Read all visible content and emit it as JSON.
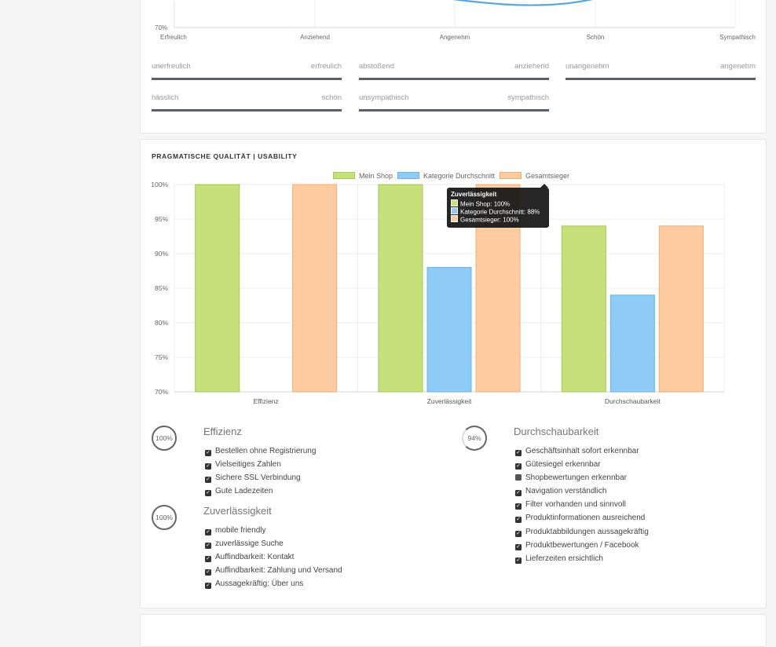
{
  "top_card": {
    "line_chart": {
      "y_tick": "70%",
      "x_labels": [
        "Erfreulich",
        "Anziehend",
        "Angenehm",
        "Schön",
        "Sympathisch"
      ]
    },
    "differentials": [
      {
        "left": "unerfreulich",
        "right": "erfreulich"
      },
      {
        "left": "abstoßend",
        "right": "anziehend"
      },
      {
        "left": "unangenehm",
        "right": "angenehm"
      },
      {
        "left": "hässlich",
        "right": "schön"
      },
      {
        "left": "unsympathisch",
        "right": "sympathisch"
      }
    ]
  },
  "usability": {
    "title": "PRAGMATISCHE QUALITÄT | USABILITY",
    "colors": {
      "mein_shop": "#c5e17a",
      "kategorie": "#8ecbf6",
      "gesamtsieger": "#ffcba0"
    },
    "tooltip": {
      "title": "Zuverlässigkeit",
      "rows": [
        "Mein Shop: 100%",
        "Kategorie Durchschnitt: 88%",
        "Gesamtsieger: 100%"
      ]
    },
    "categories_detail": [
      {
        "name": "Effizienz",
        "score": "100%",
        "items": [
          "Bestellen ohne Registrierung",
          "Vielseitiges Zahlen",
          "Sichere SSL Verbindung",
          "Gute Ladezeiten"
        ]
      },
      {
        "name": "Zuverlässigkeit",
        "score": "100%",
        "items": [
          "mobile friendly",
          "zuverlässige Suche",
          "Auffindbarkeit: Kontakt",
          "Auffindbarkeit: Zahlung und Versand",
          "Aussagekräftig: Über uns"
        ]
      },
      {
        "name": "Durchschaubarkeit",
        "score": "94%",
        "items": [
          "Geschäftsinhalt sofort erkennbar",
          "Gütesiegel erkennbar",
          "Shopbewertungen erkennbar",
          "Navigation verständlich",
          "Filter vorhanden und sinnvoll",
          "Produktinformationen ausreichend",
          "Produktabbildungen aussagekräftig",
          "Produktbewertungen / Facebook",
          "Lieferzeiten ersichtlich"
        ]
      }
    ]
  },
  "chart_data": {
    "type": "bar",
    "title": "PRAGMATISCHE QUALITÄT | USABILITY",
    "categories": [
      "Effizienz",
      "Zuverlässigkeit",
      "Durchschaubarkeit"
    ],
    "series": [
      {
        "name": "Mein Shop",
        "values": [
          100,
          100,
          94
        ]
      },
      {
        "name": "Kategorie Durchschnitt",
        "values": [
          null,
          88,
          84
        ]
      },
      {
        "name": "Gesamtsieger",
        "values": [
          100,
          100,
          94
        ]
      }
    ],
    "y_ticks": [
      "100%",
      "95%",
      "90%",
      "85%",
      "80%",
      "75%",
      "70%"
    ],
    "ylim": [
      70,
      100
    ],
    "grid": true,
    "legend": "top"
  }
}
